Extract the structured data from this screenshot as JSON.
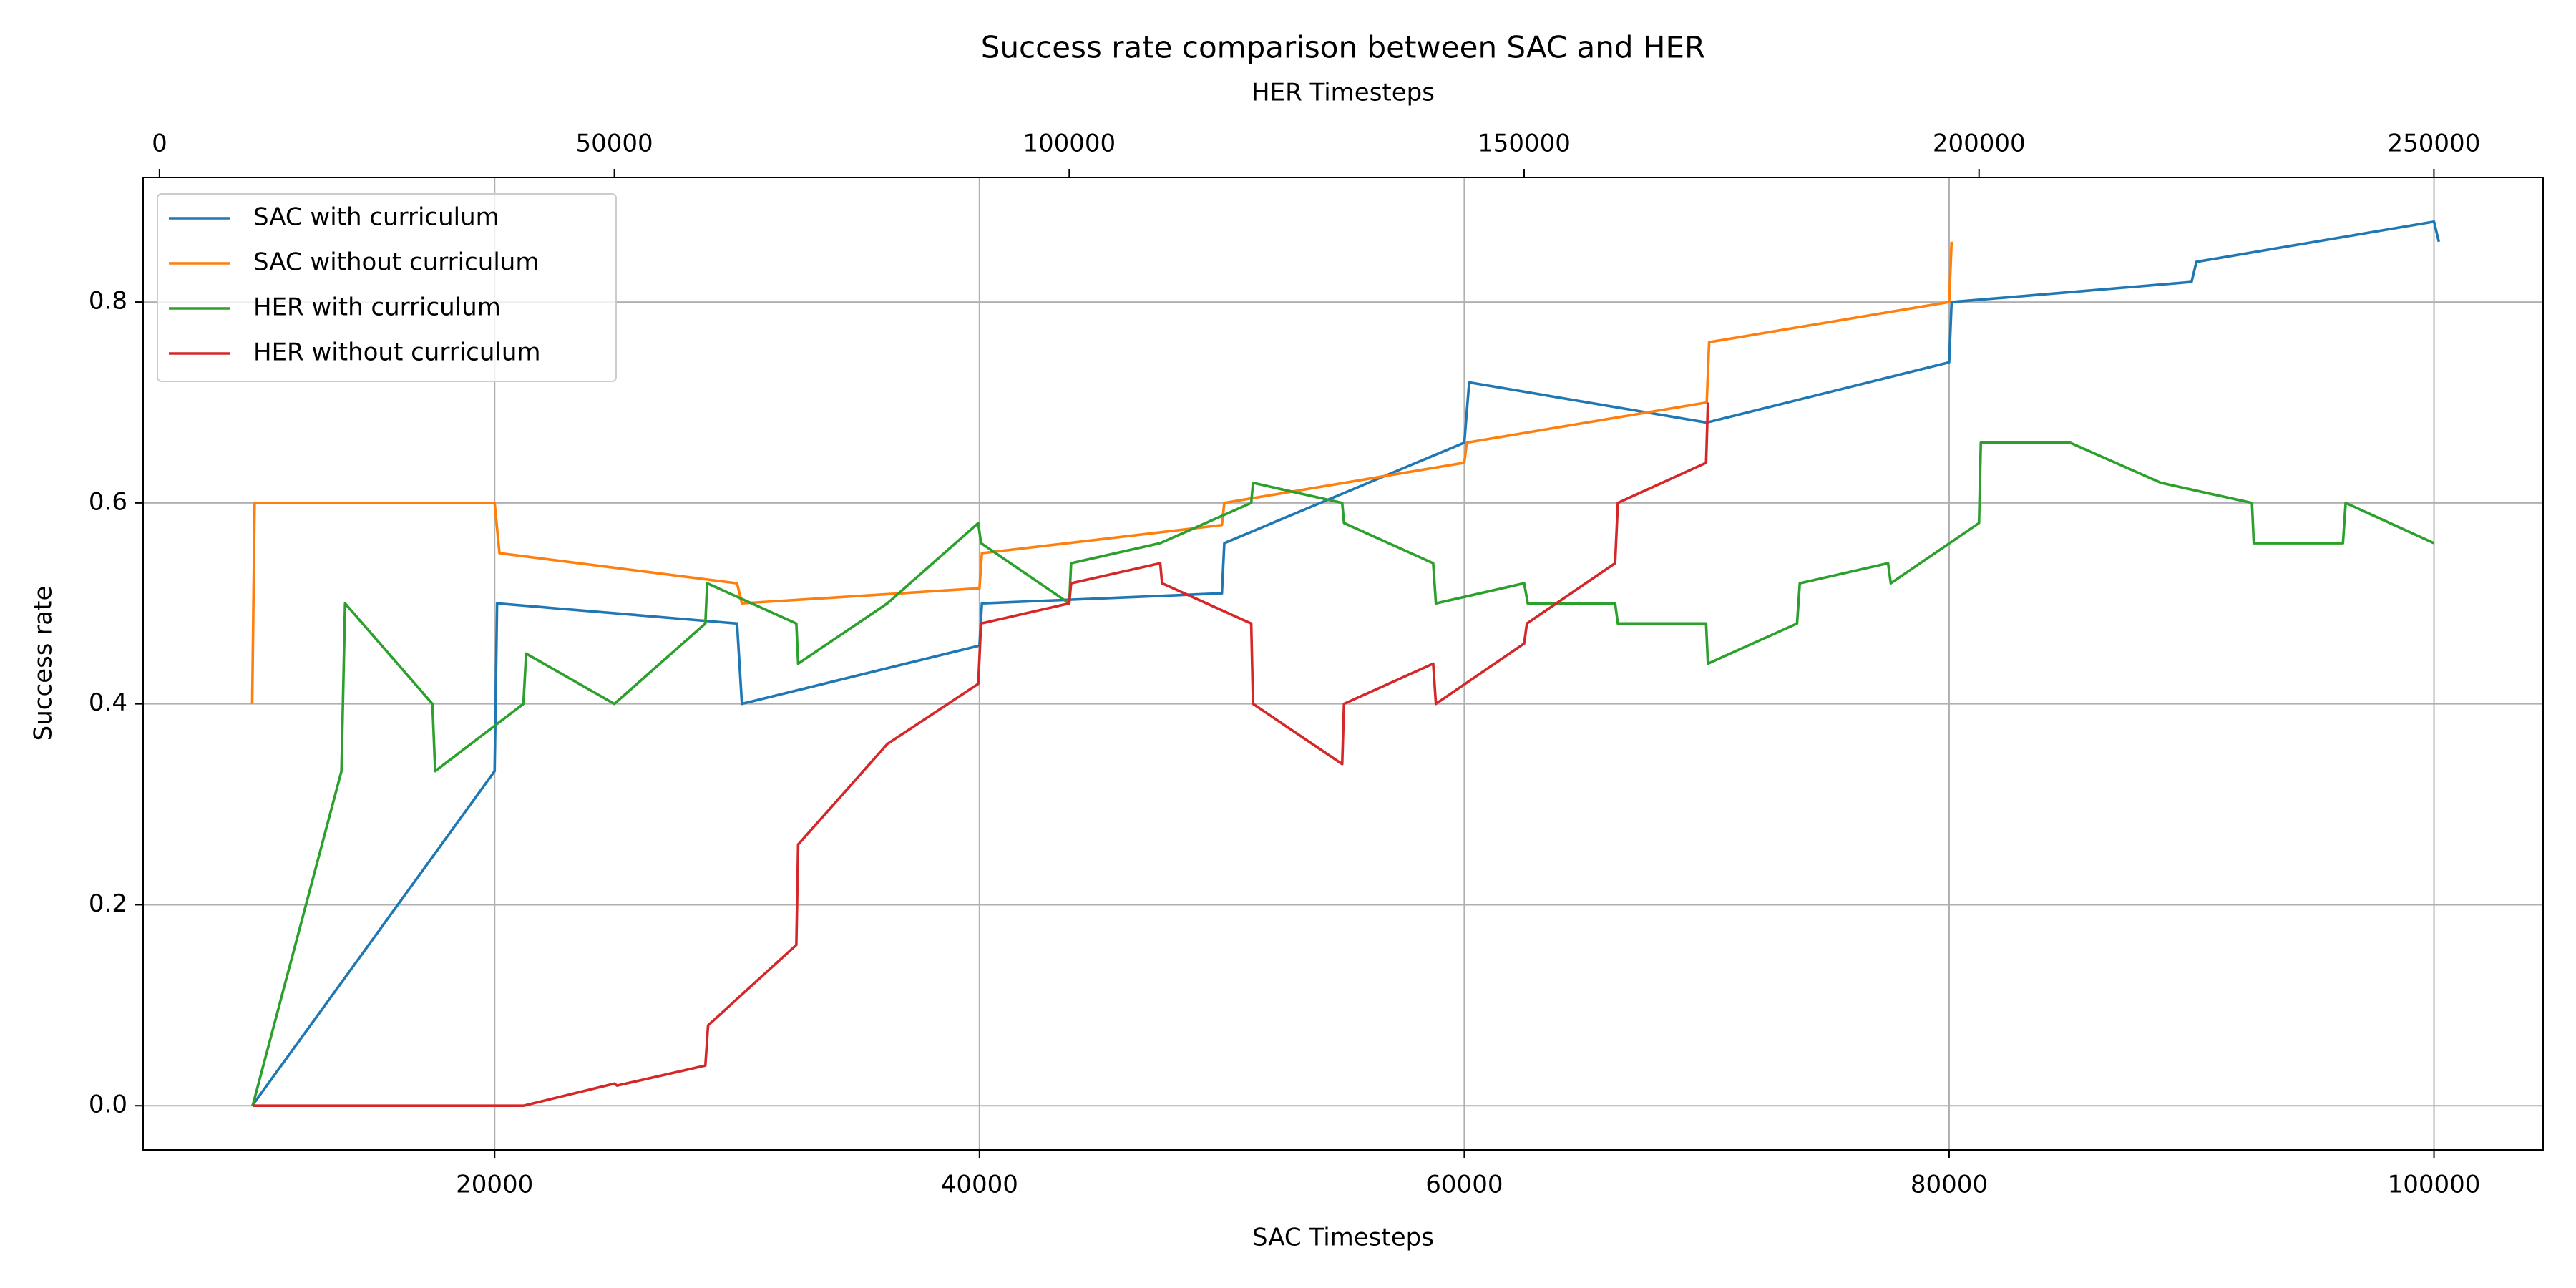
{
  "chart_data": {
    "type": "line",
    "title": "Success rate comparison between SAC and HER",
    "xlabel": "SAC Timesteps",
    "x2label": "HER Timesteps",
    "ylabel": "Success rate",
    "xlim": [
      5500,
      104500
    ],
    "xticks": [
      20000,
      40000,
      60000,
      80000,
      100000
    ],
    "x2lim": [
      -1800,
      262000
    ],
    "x2ticks": [
      0,
      50000,
      100000,
      150000,
      200000,
      250000
    ],
    "ylim": [
      -0.044,
      0.924
    ],
    "yticks": [
      {
        "value": 0,
        "label": "0.0"
      },
      {
        "value": 0.2,
        "label": "0.2"
      },
      {
        "value": 0.4,
        "label": "0.4"
      },
      {
        "value": 0.6,
        "label": "0.6"
      },
      {
        "value": 0.8,
        "label": "0.8"
      }
    ],
    "grid": true,
    "legend": "upper left",
    "series": [
      {
        "name": "SAC with curriculum",
        "color": "#1f77b4",
        "xaxis": "x",
        "x": [
          10000,
          20000,
          20100,
          30000,
          30200,
          40000,
          40100,
          50000,
          50100,
          60000,
          60200,
          70000,
          80000,
          80100,
          90000,
          90200,
          100000,
          100200
        ],
        "values": [
          0,
          0.333,
          0.5,
          0.48,
          0.4,
          0.458,
          0.5,
          0.51,
          0.56,
          0.66,
          0.72,
          0.68,
          0.74,
          0.8,
          0.82,
          0.84,
          0.88,
          0.86
        ]
      },
      {
        "name": "SAC without curriculum",
        "color": "#ff7f0e",
        "xaxis": "x",
        "x": [
          10000,
          10100,
          20000,
          20200,
          30000,
          30200,
          40000,
          40100,
          50000,
          50100,
          60000,
          60100,
          70000,
          70100,
          80000,
          80100
        ],
        "values": [
          0.4,
          0.6,
          0.6,
          0.55,
          0.52,
          0.5,
          0.515,
          0.55,
          0.578,
          0.6,
          0.64,
          0.66,
          0.7,
          0.76,
          0.8,
          0.86
        ]
      },
      {
        "name": "HER with curriculum",
        "color": "#2ca02c",
        "xaxis": "x2",
        "x": [
          10240,
          20000,
          20400,
          30000,
          30300,
          40000,
          40300,
          50000,
          60000,
          60200,
          70000,
          70200,
          80000,
          90000,
          90300,
          100000,
          100200,
          110000,
          120000,
          120200,
          130000,
          130200,
          140000,
          140300,
          150000,
          150400,
          160000,
          160300,
          170000,
          170200,
          180000,
          180300,
          190000,
          190300,
          200000,
          200200,
          210000,
          220000,
          230000,
          230200,
          240000,
          240300,
          250000
        ],
        "values": [
          0,
          0.333,
          0.5,
          0.4,
          0.333,
          0.4,
          0.45,
          0.4,
          0.48,
          0.52,
          0.48,
          0.44,
          0.5,
          0.58,
          0.56,
          0.5,
          0.54,
          0.56,
          0.6,
          0.62,
          0.6,
          0.58,
          0.54,
          0.5,
          0.52,
          0.5,
          0.5,
          0.48,
          0.48,
          0.44,
          0.48,
          0.52,
          0.54,
          0.52,
          0.58,
          0.66,
          0.66,
          0.62,
          0.6,
          0.56,
          0.56,
          0.6,
          0.56
        ]
      },
      {
        "name": "HER without curriculum",
        "color": "#d62728",
        "xaxis": "x2",
        "x": [
          10240,
          40000,
          50000,
          50300,
          60000,
          60300,
          70000,
          70200,
          80000,
          90000,
          90300,
          100000,
          100200,
          110000,
          110200,
          120000,
          120200,
          130000,
          130200,
          140000,
          140300,
          150000,
          150300,
          160000,
          160300,
          170000,
          170200
        ],
        "values": [
          0,
          0,
          0.022,
          0.02,
          0.04,
          0.08,
          0.16,
          0.26,
          0.36,
          0.42,
          0.48,
          0.5,
          0.52,
          0.54,
          0.52,
          0.48,
          0.4,
          0.34,
          0.4,
          0.44,
          0.4,
          0.46,
          0.48,
          0.54,
          0.6,
          0.64,
          0.7
        ]
      }
    ]
  }
}
